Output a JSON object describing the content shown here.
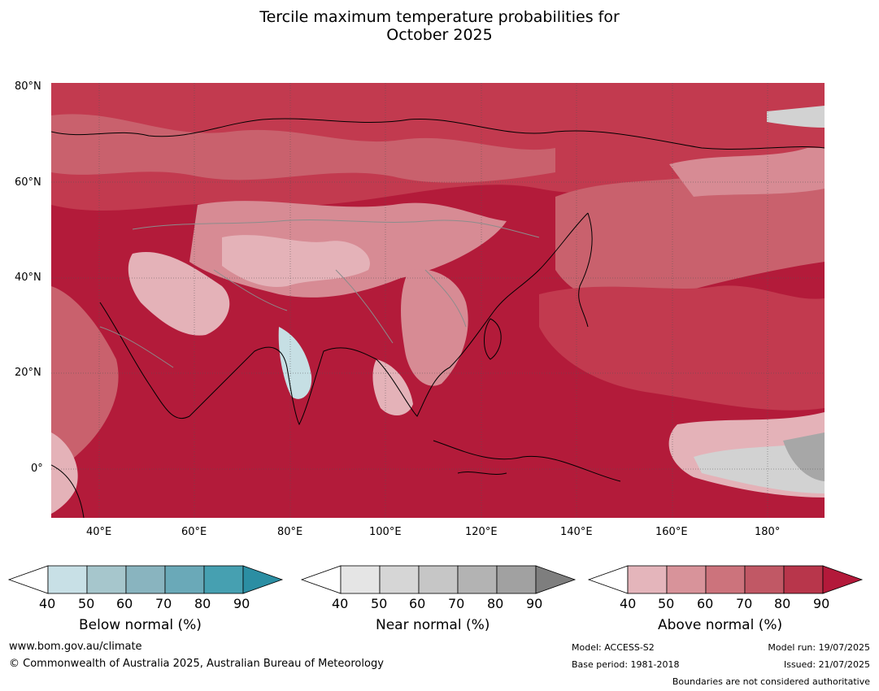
{
  "title_line1": "Tercile maximum temperature probabilities for",
  "title_line2": "October 2025",
  "map": {
    "lat_labels": [
      "80°N",
      "60°N",
      "40°N",
      "20°N",
      "0°"
    ],
    "lon_labels": [
      "40°E",
      "60°E",
      "80°E",
      "100°E",
      "120°E",
      "140°E",
      "160°E",
      "180°"
    ],
    "colors": {
      "above_90": "#b31b3a",
      "above_80": "#c23a4f",
      "above_70": "#c9616d",
      "above_60": "#d78b94",
      "above_50": "#e4b2b8",
      "near_50": "#d2d2d2",
      "near_70": "#a7a7a7",
      "below_50": "#c6dfe4",
      "coast": "#000000",
      "border": "#8c8c8c"
    }
  },
  "colorbars": [
    {
      "title": "Below normal (%)",
      "ticks": [
        "40",
        "50",
        "60",
        "70",
        "80",
        "90"
      ],
      "colors": [
        "#ffffff",
        "#c8e0e6",
        "#a6c6cc",
        "#89b4bf",
        "#6aa9b8",
        "#46a0b1",
        "#2b8ea3"
      ]
    },
    {
      "title": "Near normal (%)",
      "ticks": [
        "40",
        "50",
        "60",
        "70",
        "80",
        "90"
      ],
      "colors": [
        "#ffffff",
        "#e5e5e5",
        "#d6d6d6",
        "#c6c6c6",
        "#b3b3b3",
        "#a1a1a1",
        "#7e7e7e"
      ]
    },
    {
      "title": "Above normal (%)",
      "ticks": [
        "40",
        "50",
        "60",
        "70",
        "80",
        "90"
      ],
      "colors": [
        "#ffffff",
        "#e4b5bb",
        "#d8939a",
        "#cc737c",
        "#c15865",
        "#b8364b",
        "#b3193a"
      ]
    }
  ],
  "footer": {
    "website": "www.bom.gov.au/climate",
    "copyright": "© Commonwealth of Australia 2025, Australian Bureau of Meteorology",
    "model": "Model: ACCESS-S2",
    "base_period": "Base period: 1981-2018",
    "model_run": "Model run: 19/07/2025",
    "issued": "Issued: 21/07/2025",
    "disclaimer": "Boundaries are not considered authoritative"
  }
}
